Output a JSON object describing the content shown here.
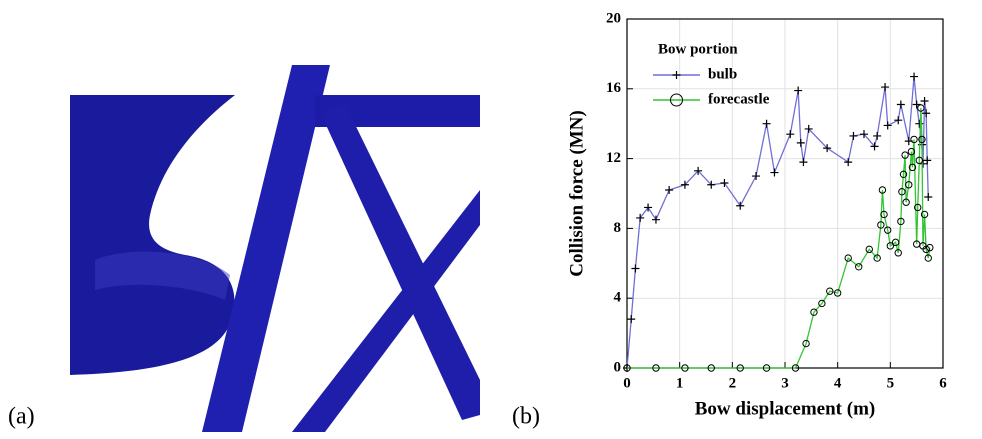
{
  "panel_labels": [
    "(a)",
    "(b)"
  ],
  "chart_data": {
    "type": "line",
    "x_label": "Bow displacement (m)",
    "y_label": "Collision force (MN)",
    "legend_title": "Bow portion",
    "legend": "upper left",
    "grid": true,
    "xlim": [
      0,
      6
    ],
    "xticks": [
      0,
      1,
      2,
      3,
      4,
      5,
      6
    ],
    "ylim": [
      0,
      20
    ],
    "yticks": [
      0,
      4,
      8,
      12,
      16,
      20
    ],
    "series": [
      {
        "name": "bulb",
        "color": "#6f6fd8",
        "marker": "plus",
        "x": [
          0,
          0.08,
          0.16,
          0.25,
          0.4,
          0.55,
          0.8,
          1.1,
          1.35,
          1.6,
          1.85,
          2.15,
          2.45,
          2.65,
          2.8,
          3.1,
          3.25,
          3.3,
          3.35,
          3.45,
          3.8,
          4.2,
          4.3,
          4.5,
          4.7,
          4.75,
          4.9,
          4.95,
          5.15,
          5.2,
          5.35,
          5.45,
          5.5,
          5.55,
          5.6,
          5.62,
          5.65,
          5.68,
          5.7,
          5.72
        ],
        "values": [
          0,
          2.8,
          5.7,
          8.6,
          9.2,
          8.5,
          10.2,
          10.5,
          11.3,
          10.5,
          10.6,
          9.3,
          11,
          14,
          11.2,
          13.4,
          15.9,
          12.9,
          11.8,
          13.7,
          12.6,
          11.8,
          13.3,
          13.4,
          12.7,
          13.3,
          16.1,
          13.9,
          14.2,
          15.1,
          13,
          16.7,
          15.1,
          14,
          12.8,
          11.7,
          15.3,
          14.6,
          11.9,
          9.8
        ]
      },
      {
        "name": "forecastle",
        "color": "#33c433",
        "marker": "circle",
        "x": [
          0,
          0.55,
          1.1,
          1.6,
          2.15,
          2.65,
          3.2,
          3.4,
          3.55,
          3.7,
          3.85,
          4.0,
          4.2,
          4.4,
          4.6,
          4.75,
          4.82,
          4.85,
          4.88,
          4.95,
          5.0,
          5.1,
          5.15,
          5.2,
          5.22,
          5.25,
          5.28,
          5.3,
          5.35,
          5.4,
          5.42,
          5.45,
          5.5,
          5.52,
          5.55,
          5.58,
          5.6,
          5.62,
          5.65,
          5.68,
          5.72,
          5.75
        ],
        "values": [
          0,
          0,
          0,
          0,
          0,
          0,
          0,
          1.4,
          3.2,
          3.7,
          4.4,
          4.3,
          6.3,
          5.8,
          6.8,
          6.3,
          8.2,
          10.2,
          8.8,
          7.9,
          7,
          7.2,
          6.6,
          8.4,
          10.1,
          11.1,
          12.2,
          9.5,
          10.5,
          12.4,
          11.5,
          13.1,
          7.1,
          9.2,
          11.9,
          14.9,
          13.1,
          7,
          8.8,
          6.8,
          6.3,
          6.9
        ]
      }
    ]
  }
}
